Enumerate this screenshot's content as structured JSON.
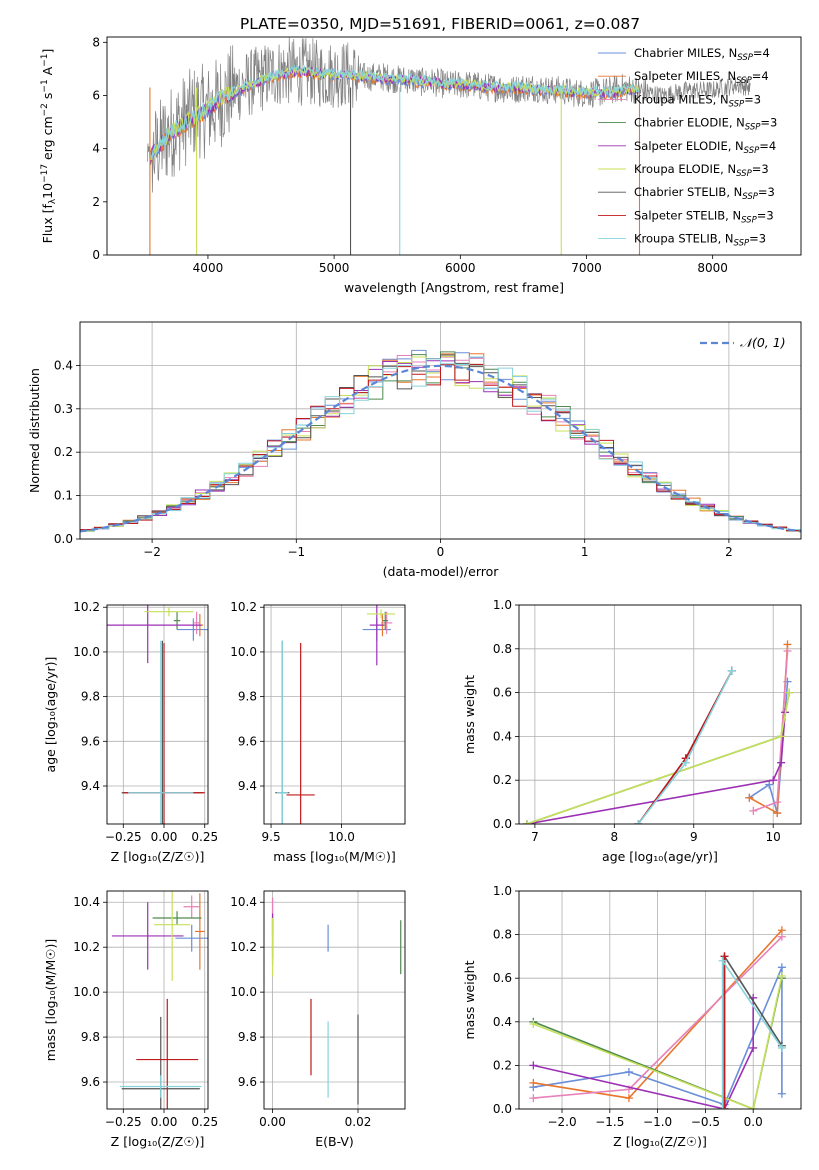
{
  "figure": {
    "title": "PLATE=0350, MJD=51691, FIBERID=0061, z=0.087"
  },
  "colors": {
    "Chabrier MILES": "#6a8fd8",
    "Salpeter MILES": "#e8772e",
    "Kroupa MILES": "#e781b8",
    "Chabrier ELODIE": "#4f8a4f",
    "Salpeter ELODIE": "#9b30b5",
    "Kroupa ELODIE": "#c6e05a",
    "Chabrier STELIB": "#555555",
    "Salpeter STELIB": "#c0191c",
    "Kroupa STELIB": "#86d3dc"
  },
  "chart_data": [
    {
      "id": "spectrum",
      "type": "line",
      "title": "PLATE=0350, MJD=51691, FIBERID=0061, z=0.087",
      "xlabel": "wavelength [Angstrom, rest frame]",
      "ylabel_parts": [
        "Flux [f",
        "λ",
        "10",
        "−17",
        " erg cm",
        "−2",
        " s",
        "−1",
        " A",
        "−1",
        "]"
      ],
      "xlim": [
        3200,
        8700
      ],
      "ylim": [
        0,
        8.2
      ],
      "xticks": [
        4000,
        5000,
        6000,
        7000,
        8000
      ],
      "yticks": [
        0,
        2,
        4,
        6,
        8
      ],
      "grid": false,
      "legend_position": "upper-right",
      "legend": [
        {
          "label": "Chabrier MILES, N",
          "sub": "SSP",
          "tail": "=4"
        },
        {
          "label": "Salpeter MILES, N",
          "sub": "SSP",
          "tail": "=4"
        },
        {
          "label": "Kroupa MILES, N",
          "sub": "SSP",
          "tail": "=3"
        },
        {
          "label": "Chabrier ELODIE, N",
          "sub": "SSP",
          "tail": "=3"
        },
        {
          "label": "Salpeter ELODIE, N",
          "sub": "SSP",
          "tail": "=4"
        },
        {
          "label": "Kroupa ELODIE, N",
          "sub": "SSP",
          "tail": "=3"
        },
        {
          "label": "Chabrier STELIB, N",
          "sub": "SSP",
          "tail": "=3"
        },
        {
          "label": "Salpeter STELIB, N",
          "sub": "SSP",
          "tail": "=3"
        },
        {
          "label": "Kroupa STELIB, N",
          "sub": "SSP",
          "tail": "=3"
        }
      ],
      "series": [
        {
          "name": "data",
          "color": "#808080",
          "x": [
            3520,
            3600,
            3700,
            3800,
            3900,
            4000,
            4100,
            4200,
            4300,
            4400,
            4500,
            4600,
            4700,
            4800,
            4900,
            5000,
            5100,
            5200,
            5300,
            5400,
            5500,
            5600,
            5700,
            5800,
            5900,
            6000,
            6100,
            6200,
            6300,
            6400,
            6500,
            6600,
            6700,
            6800,
            6900,
            7000,
            7100,
            7200,
            7300,
            7400,
            7500,
            7600,
            7800,
            8000,
            8200,
            8300
          ],
          "y": [
            3.5,
            4.0,
            4.6,
            5.0,
            5.4,
            5.4,
            5.8,
            6.2,
            6.4,
            6.6,
            6.8,
            6.9,
            6.9,
            6.9,
            6.8,
            6.8,
            6.8,
            6.7,
            6.7,
            6.7,
            6.6,
            6.6,
            6.5,
            6.5,
            6.4,
            6.4,
            6.4,
            6.3,
            6.3,
            6.2,
            6.3,
            6.3,
            6.2,
            6.2,
            6.1,
            6.1,
            6.1,
            6.2,
            6.3,
            6.2,
            6.1,
            6.0,
            6.2,
            6.2,
            6.4,
            6.3
          ]
        },
        {
          "name": "model",
          "color": "#86d3dc",
          "x": [
            3520,
            3600,
            3700,
            3800,
            3900,
            4000,
            4100,
            4200,
            4300,
            4400,
            4500,
            4600,
            4700,
            4800,
            4900,
            5000,
            5100,
            5200,
            5300,
            5400,
            5500,
            5600,
            5700,
            5800,
            5900,
            6000,
            6100,
            6200,
            6300,
            6400,
            6500,
            6600,
            6700,
            6800,
            6900,
            7000,
            7100,
            7200,
            7300,
            7400
          ],
          "y": [
            3.6,
            4.0,
            4.6,
            4.9,
            5.2,
            5.5,
            5.9,
            6.1,
            6.3,
            6.5,
            6.7,
            6.8,
            6.9,
            6.9,
            6.8,
            6.8,
            6.8,
            6.7,
            6.7,
            6.6,
            6.6,
            6.6,
            6.5,
            6.5,
            6.4,
            6.4,
            6.4,
            6.3,
            6.3,
            6.3,
            6.3,
            6.2,
            6.2,
            6.2,
            6.1,
            6.1,
            6.1,
            6.1,
            6.2,
            6.2
          ]
        }
      ],
      "absorption_lines": [
        {
          "x": 3540,
          "depth": 0.0,
          "color": "#e8772e"
        },
        {
          "x": 3910,
          "depth": 0.0,
          "color": "#c6e05a"
        },
        {
          "x": 5130,
          "depth": 0.0,
          "color": "#555555"
        },
        {
          "x": 5520,
          "depth": 0.0,
          "color": "#86d3dc"
        },
        {
          "x": 6800,
          "depth": 0.0,
          "color": "#c6e05a"
        },
        {
          "x": 7420,
          "depth": 0.0,
          "color": "#e8772e"
        }
      ]
    },
    {
      "id": "residuals",
      "type": "histogram",
      "xlabel": "(data-model)/error",
      "ylabel": "Normed distribution",
      "xlim": [
        -2.5,
        2.5
      ],
      "ylim": [
        0,
        0.5
      ],
      "xticks": [
        -2,
        -1,
        0,
        1,
        2
      ],
      "xtick_labels": [
        "−2",
        "−1",
        "0",
        "1",
        "2"
      ],
      "yticks": [
        0,
        0.1,
        0.2,
        0.3,
        0.4
      ],
      "ytick_labels": [
        "0.0",
        "0.1",
        "0.2",
        "0.3",
        "0.4"
      ],
      "grid": true,
      "legend_position": "upper-right",
      "legend": [
        {
          "label": "𝒩(0, 1)"
        }
      ],
      "bin_width": 0.1,
      "gaussian": {
        "mean": 0,
        "sigma": 1,
        "color": "#5b86d6"
      }
    },
    {
      "id": "age-vs-Z",
      "type": "errorbar",
      "xlabel": "Z [log₁₀(Z/Z☉)]",
      "ylabel": "age  [log₁₀(age/yr)]",
      "xlim": [
        -0.35,
        0.27
      ],
      "ylim": [
        9.23,
        10.21
      ],
      "xticks": [
        -0.25,
        0.0,
        0.25
      ],
      "xtick_labels": [
        "−0.25",
        "0.00",
        "0.25"
      ],
      "yticks": [
        9.4,
        9.6,
        9.8,
        10.0,
        10.2
      ],
      "ytick_labels": [
        "9.4",
        "9.6",
        "9.8",
        "10.0",
        "10.2"
      ],
      "grid": true,
      "points": [
        {
          "c": "#6a8fd8",
          "x": 0.18,
          "y": 10.1,
          "xerr": 0.1,
          "yerr": 0.05
        },
        {
          "c": "#e8772e",
          "x": 0.22,
          "y": 10.12,
          "xerr": 0.02,
          "yerr": 0.05
        },
        {
          "c": "#e781b8",
          "x": 0.2,
          "y": 10.13,
          "xerr": 0.02,
          "yerr": 0.05
        },
        {
          "c": "#4f8a4f",
          "x": 0.08,
          "y": 10.14,
          "xerr": 0.02,
          "yerr": 0.04
        },
        {
          "c": "#9b30b5",
          "x": -0.1,
          "y": 10.12,
          "xerr": 0.33,
          "yerr": 0.17
        },
        {
          "c": "#c6e05a",
          "x": 0.03,
          "y": 10.18,
          "xerr": 0.15,
          "yerr": 0.02
        },
        {
          "c": "#555555",
          "x": -0.01,
          "y": 9.37,
          "xerr": 0.25,
          "yerr": 0.68
        },
        {
          "c": "#c0191c",
          "x": 0.0,
          "y": 9.37,
          "xerr": 0.25,
          "yerr": 0.67
        },
        {
          "c": "#86d3dc",
          "x": -0.02,
          "y": 9.37,
          "xerr": 0.2,
          "yerr": 0.68
        }
      ]
    },
    {
      "id": "age-vs-mass",
      "type": "errorbar",
      "xlabel": "mass [log₁₀(M/M☉)]",
      "xlim": [
        9.45,
        10.45
      ],
      "ylim": [
        9.23,
        10.21
      ],
      "xticks": [
        9.5,
        10.0
      ],
      "xtick_labels": [
        "9.5",
        "10.0"
      ],
      "yticks": [
        9.4,
        9.6,
        9.8,
        10.0,
        10.2
      ],
      "ytick_labels": [
        "9.4",
        "9.6",
        "9.8",
        "10.0",
        "10.2"
      ],
      "grid": true,
      "points": [
        {
          "c": "#6a8fd8",
          "x": 10.25,
          "y": 10.1,
          "xerr": 0.1,
          "yerr": 0.05
        },
        {
          "c": "#e8772e",
          "x": 10.29,
          "y": 10.12,
          "xerr": 0.02,
          "yerr": 0.05
        },
        {
          "c": "#e781b8",
          "x": 10.32,
          "y": 10.13,
          "xerr": 0.04,
          "yerr": 0.05
        },
        {
          "c": "#4f8a4f",
          "x": 10.31,
          "y": 10.14,
          "xerr": 0.02,
          "yerr": 0.04
        },
        {
          "c": "#9b30b5",
          "x": 10.25,
          "y": 10.12,
          "xerr": 0.05,
          "yerr": 0.18
        },
        {
          "c": "#c6e05a",
          "x": 10.28,
          "y": 10.17,
          "xerr": 0.1,
          "yerr": 0.02
        },
        {
          "c": "#555555",
          "x": 9.58,
          "y": 9.37,
          "xerr": 0.05,
          "yerr": 0.68
        },
        {
          "c": "#c0191c",
          "x": 9.71,
          "y": 9.36,
          "xerr": 0.1,
          "yerr": 0.68
        },
        {
          "c": "#86d3dc",
          "x": 9.58,
          "y": 9.37,
          "xerr": 0.04,
          "yerr": 0.68
        }
      ]
    },
    {
      "id": "weight-vs-age",
      "type": "line",
      "xlabel": "age  [log₁₀(age/yr)]",
      "ylabel": "mass weight",
      "xlim": [
        6.8,
        10.35
      ],
      "ylim": [
        0,
        1.0
      ],
      "xticks": [
        7,
        8,
        9,
        10
      ],
      "yticks": [
        0,
        0.2,
        0.4,
        0.6,
        0.8,
        1.0
      ],
      "ytick_labels": [
        "0.0",
        "0.2",
        "0.4",
        "0.6",
        "0.8",
        "1.0"
      ],
      "grid": true,
      "series": [
        {
          "c": "#6a8fd8",
          "x": [
            9.7,
            9.95,
            10.05,
            10.18
          ],
          "y": [
            0.12,
            0.18,
            0.05,
            0.65
          ]
        },
        {
          "c": "#e8772e",
          "x": [
            9.7,
            10.05,
            10.18
          ],
          "y": [
            0.12,
            0.05,
            0.82
          ]
        },
        {
          "c": "#e781b8",
          "x": [
            9.75,
            10.05,
            10.18
          ],
          "y": [
            0.06,
            0.1,
            0.79
          ]
        },
        {
          "c": "#4f8a4f",
          "x": [
            6.9,
            10.1,
            10.2
          ],
          "y": [
            0.0,
            0.4,
            0.6
          ]
        },
        {
          "c": "#9b30b5",
          "x": [
            6.9,
            10.0,
            10.1,
            10.15
          ],
          "y": [
            0.0,
            0.2,
            0.28,
            0.51
          ]
        },
        {
          "c": "#c6e05a",
          "x": [
            6.9,
            10.1,
            10.2
          ],
          "y": [
            0.0,
            0.4,
            0.6
          ]
        },
        {
          "c": "#555555",
          "x": [
            8.3,
            8.9,
            9.48
          ],
          "y": [
            0.0,
            0.3,
            0.7
          ]
        },
        {
          "c": "#c0191c",
          "x": [
            8.3,
            8.9,
            9.48
          ],
          "y": [
            0.0,
            0.3,
            0.7
          ]
        },
        {
          "c": "#86d3dc",
          "x": [
            8.3,
            8.9,
            9.48
          ],
          "y": [
            0.0,
            0.28,
            0.7
          ]
        }
      ]
    },
    {
      "id": "mass-vs-Z",
      "type": "errorbar",
      "xlabel": "Z [log₁₀(Z/Z☉)]",
      "ylabel": "mass [log₁₀(M/M☉)]",
      "xlim": [
        -0.35,
        0.27
      ],
      "ylim": [
        9.48,
        10.45
      ],
      "xticks": [
        -0.25,
        0.0,
        0.25
      ],
      "xtick_labels": [
        "−0.25",
        "0.00",
        "0.25"
      ],
      "yticks": [
        9.6,
        9.8,
        10.0,
        10.2,
        10.4
      ],
      "ytick_labels": [
        "9.6",
        "9.8",
        "10.0",
        "10.2",
        "10.4"
      ],
      "grid": true,
      "points": [
        {
          "c": "#6a8fd8",
          "x": 0.17,
          "y": 10.24,
          "xerr": 0.1,
          "yerr": 0.06
        },
        {
          "c": "#e8772e",
          "x": 0.22,
          "y": 10.27,
          "xerr": 0.03,
          "yerr": 0.17
        },
        {
          "c": "#e781b8",
          "x": 0.17,
          "y": 10.38,
          "xerr": 0.05,
          "yerr": 0.05
        },
        {
          "c": "#4f8a4f",
          "x": 0.08,
          "y": 10.33,
          "xerr": 0.15,
          "yerr": 0.03
        },
        {
          "c": "#9b30b5",
          "x": -0.1,
          "y": 10.25,
          "xerr": 0.22,
          "yerr": 0.15
        },
        {
          "c": "#c6e05a",
          "x": 0.05,
          "y": 10.3,
          "xerr": 0.11,
          "yerr": 0.25
        },
        {
          "c": "#555555",
          "x": -0.02,
          "y": 9.57,
          "xerr": 0.24,
          "yerr": 0.32
        },
        {
          "c": "#c0191c",
          "x": 0.02,
          "y": 9.7,
          "xerr": 0.19,
          "yerr": 0.27
        },
        {
          "c": "#86d3dc",
          "x": -0.02,
          "y": 9.58,
          "xerr": 0.25,
          "yerr": 0.05
        }
      ]
    },
    {
      "id": "mass-vs-EBV",
      "type": "errorbar",
      "xlabel": "E(B-V)",
      "xlim": [
        -0.002,
        0.031
      ],
      "ylim": [
        9.48,
        10.45
      ],
      "xticks": [
        0.0,
        0.02
      ],
      "xtick_labels": [
        "0.00",
        "0.02"
      ],
      "yticks": [
        9.6,
        9.8,
        10.0,
        10.2,
        10.4
      ],
      "ytick_labels": [
        "9.6",
        "9.8",
        "10.0",
        "10.2",
        "10.4"
      ],
      "grid": true,
      "points": [
        {
          "c": "#6a8fd8",
          "x": 0.013,
          "y": 10.24,
          "xerr": 0.0,
          "yerr": 0.06
        },
        {
          "c": "#e8772e",
          "x": 0.0,
          "y": 10.27,
          "xerr": 0.0,
          "yerr": 0.15
        },
        {
          "c": "#e781b8",
          "x": 0.0,
          "y": 10.34,
          "xerr": 0.0,
          "yerr": 0.08
        },
        {
          "c": "#4f8a4f",
          "x": 0.03,
          "y": 10.2,
          "xerr": 0.0,
          "yerr": 0.12
        },
        {
          "c": "#9b30b5",
          "x": 0.0,
          "y": 10.25,
          "xerr": 0.0,
          "yerr": 0.1
        },
        {
          "c": "#c6e05a",
          "x": 0.0,
          "y": 10.2,
          "xerr": 0.0,
          "yerr": 0.13
        },
        {
          "c": "#555555",
          "x": 0.02,
          "y": 9.7,
          "xerr": 0.0,
          "yerr": 0.2
        },
        {
          "c": "#c0191c",
          "x": 0.009,
          "y": 9.8,
          "xerr": 0.0,
          "yerr": 0.17
        },
        {
          "c": "#86d3dc",
          "x": 0.013,
          "y": 9.7,
          "xerr": 0.0,
          "yerr": 0.17
        }
      ]
    },
    {
      "id": "weight-vs-Z",
      "type": "line",
      "xlabel": "Z [log₁₀(Z/Z☉)]",
      "ylabel": "mass weight",
      "xlim": [
        -2.45,
        0.5
      ],
      "ylim": [
        0,
        1.0
      ],
      "xticks": [
        -2.0,
        -1.5,
        -1.0,
        -0.5,
        0.0
      ],
      "xtick_labels": [
        "−2.0",
        "−1.5",
        "−1.0",
        "−0.5",
        "0.0"
      ],
      "yticks": [
        0,
        0.2,
        0.4,
        0.6,
        0.8,
        1.0
      ],
      "ytick_labels": [
        "0.0",
        "0.2",
        "0.4",
        "0.6",
        "0.8",
        "1.0"
      ],
      "grid": true,
      "series": [
        {
          "c": "#6a8fd8",
          "x": [
            -2.3,
            -1.3,
            -0.3,
            0.3,
            0.3
          ],
          "y": [
            0.1,
            0.17,
            0.02,
            0.65,
            0.07
          ]
        },
        {
          "c": "#e8772e",
          "x": [
            -2.3,
            -1.3,
            0.3
          ],
          "y": [
            0.12,
            0.05,
            0.82
          ]
        },
        {
          "c": "#e781b8",
          "x": [
            -2.3,
            -1.3,
            0.3
          ],
          "y": [
            0.05,
            0.09,
            0.79
          ]
        },
        {
          "c": "#4f8a4f",
          "x": [
            -2.3,
            0.0,
            0.3
          ],
          "y": [
            0.4,
            0.0,
            0.6
          ]
        },
        {
          "c": "#9b30b5",
          "x": [
            -2.3,
            -0.3,
            0.0,
            0.0
          ],
          "y": [
            0.2,
            0.0,
            0.28,
            0.51
          ]
        },
        {
          "c": "#c6e05a",
          "x": [
            -2.3,
            0.0,
            0.3
          ],
          "y": [
            0.39,
            0.0,
            0.61
          ]
        },
        {
          "c": "#555555",
          "x": [
            -0.3,
            -0.3,
            0.3
          ],
          "y": [
            0.0,
            0.7,
            0.29
          ]
        },
        {
          "c": "#c0191c",
          "x": [
            -0.3,
            -0.3
          ],
          "y": [
            0.0,
            0.7
          ]
        },
        {
          "c": "#86d3dc",
          "x": [
            -0.32,
            -0.32,
            0.3
          ],
          "y": [
            0.0,
            0.68,
            0.28
          ]
        }
      ]
    }
  ]
}
